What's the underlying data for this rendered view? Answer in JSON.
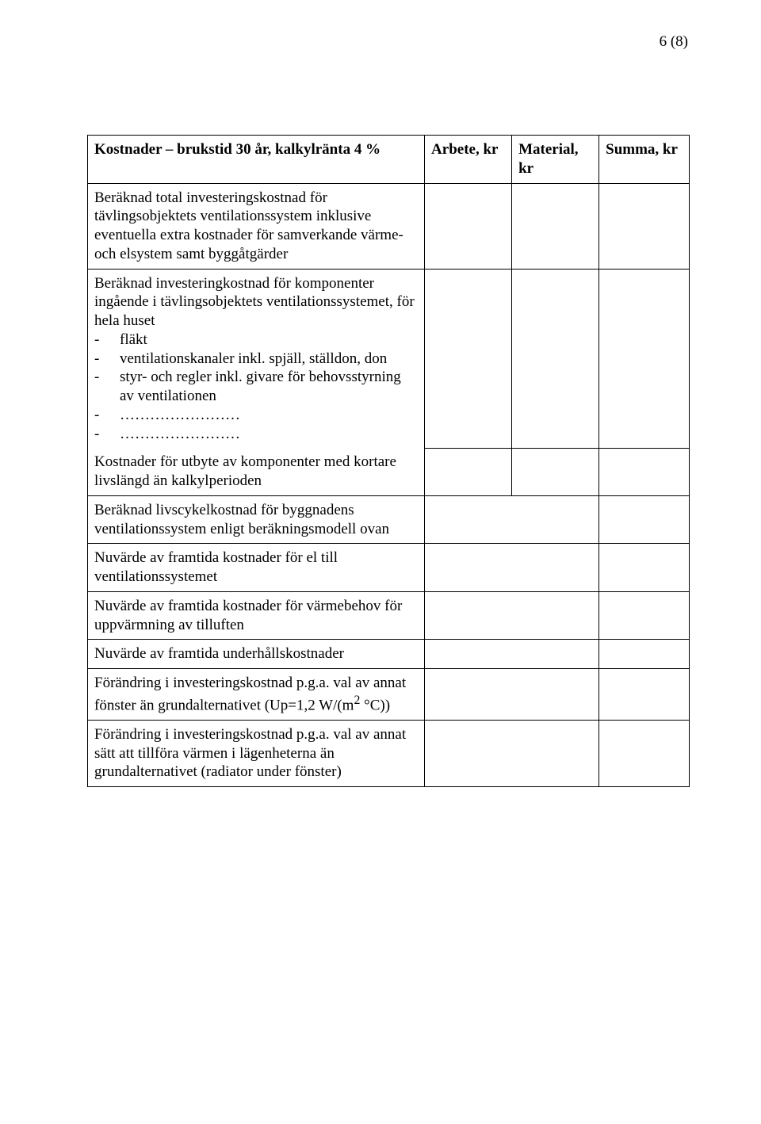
{
  "page_number": "6 (8)",
  "header": {
    "c1": "Kostnader – brukstid 30 år, kalkylränta 4 %",
    "c2": "Arbete, kr",
    "c3": "Material, kr",
    "c4": "Summa, kr"
  },
  "rows": {
    "r1": "Beräknad total investeringskostnad för tävlingsobjektets ventilationssystem inklusive eventuella extra kostnader för samverkande värme- och elsystem samt byggåtgärder",
    "r2_lead": "Beräknad investeringkostnad för komponenter ingående i tävlingsobjektets ventilationssystemet, för hela huset",
    "r2_items": [
      "fläkt",
      "ventilationskanaler inkl. spjäll, ställdon, don",
      "styr- och regler inkl. givare för behovsstyrning av ventilationen",
      "……………………",
      "……………………"
    ],
    "r3": "Kostnader för utbyte av komponenter med kortare livslängd än kalkylperioden",
    "r4": "Beräknad livscykelkostnad för byggnadens ventilationssystem enligt beräkningsmodell ovan",
    "r5": "Nuvärde av framtida kostnader för el till ventilationssystemet",
    "r6": "Nuvärde av framtida kostnader för värmebehov för uppvärmning av tilluften",
    "r7": "Nuvärde av framtida underhållskostnader",
    "r8_a": "Förändring i investeringskostnad p.g.a. val av annat fönster än grundalternativet (Up=1,2 W/(m",
    "r8_sup": "2",
    "r8_b": " °C))",
    "r9": "Förändring i investeringskostnad p.g.a. val av annat sätt att tillföra värmen i lägenheterna än grundalternativet (radiator under fönster)"
  }
}
